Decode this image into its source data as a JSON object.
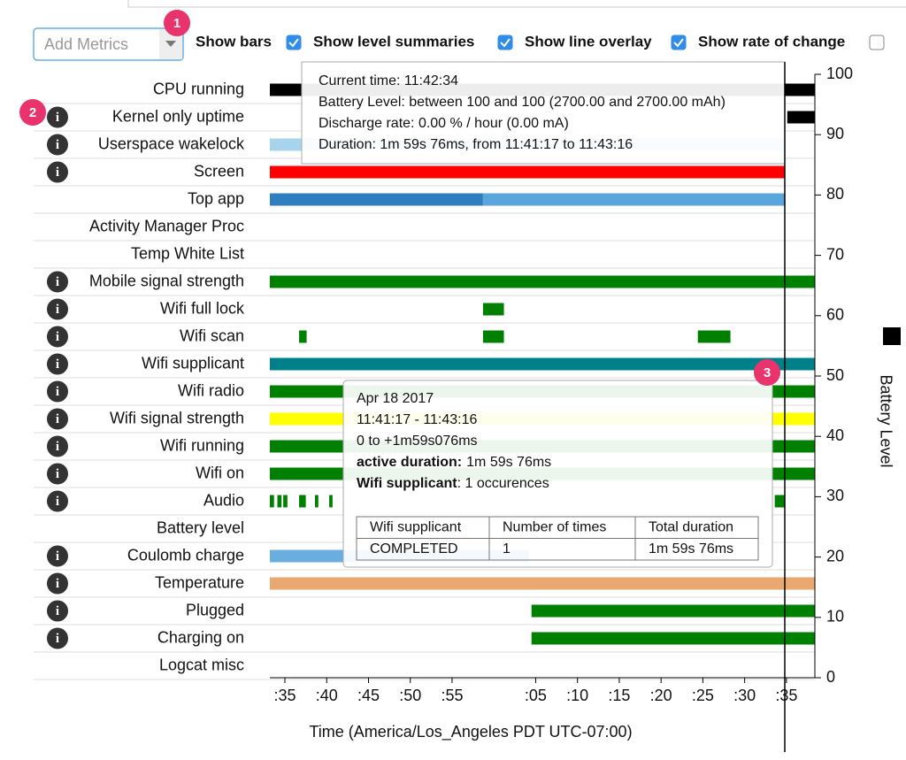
{
  "controls": {
    "add_metrics": "Add Metrics",
    "checkboxes": [
      {
        "label": "Show bars",
        "checked": true
      },
      {
        "label": "Show level summaries",
        "checked": true
      },
      {
        "label": "Show line overlay",
        "checked": true
      },
      {
        "label": "Show rate of change",
        "checked": false
      }
    ]
  },
  "badges": [
    "1",
    "2",
    "3"
  ],
  "timeline": {
    "xlim": [
      33.2,
      98.4
    ],
    "xticks": [
      {
        "value": 35,
        "label": ":35"
      },
      {
        "value": 40,
        "label": ":40"
      },
      {
        "value": 45,
        "label": ":45"
      },
      {
        "value": 50,
        "label": ":50"
      },
      {
        "value": 55,
        "label": ":55"
      },
      {
        "value": 65,
        "label": ":05"
      },
      {
        "value": 70,
        "label": ":10"
      },
      {
        "value": 75,
        "label": ":15"
      },
      {
        "value": 80,
        "label": ":20"
      },
      {
        "value": 85,
        "label": ":25"
      },
      {
        "value": 90,
        "label": ":30"
      },
      {
        "value": 95,
        "label": ":35"
      }
    ],
    "xlabel": "Time (America/Los_Angeles PDT UTC-07:00)",
    "ylabel": "Battery Level",
    "ylim": [
      0,
      100
    ],
    "yticks": [
      0,
      10,
      20,
      30,
      40,
      50,
      60,
      70,
      80,
      90,
      100
    ],
    "rows": [
      {
        "label": "CPU running",
        "info": false,
        "bars": [
          {
            "start": 33.2,
            "end": 98.4,
            "color": "#000000"
          }
        ]
      },
      {
        "label": "Kernel only uptime",
        "info": true,
        "bars": [
          {
            "start": 95.1,
            "end": 98.4,
            "color": "#000000"
          }
        ]
      },
      {
        "label": "Userspace wakelock",
        "info": true,
        "bars": [
          {
            "start": 33.2,
            "end": 94.8,
            "color": "#a6d4ec"
          }
        ]
      },
      {
        "label": "Screen",
        "info": true,
        "bars": [
          {
            "start": 33.2,
            "end": 94.8,
            "color": "#ff0000"
          }
        ]
      },
      {
        "label": "Top app",
        "info": false,
        "bars": [
          {
            "start": 33.2,
            "end": 58.7,
            "color": "#2e7ec0"
          },
          {
            "start": 58.7,
            "end": 94.8,
            "color": "#5aa6dc"
          }
        ]
      },
      {
        "label": "Activity Manager Proc",
        "info": false,
        "bars": []
      },
      {
        "label": "Temp White List",
        "info": false,
        "bars": []
      },
      {
        "label": "Mobile signal strength",
        "info": true,
        "bars": [
          {
            "start": 33.2,
            "end": 98.4,
            "color": "#008000"
          }
        ]
      },
      {
        "label": "Wifi full lock",
        "info": true,
        "bars": [
          {
            "start": 58.7,
            "end": 61.2,
            "color": "#008000"
          }
        ]
      },
      {
        "label": "Wifi scan",
        "info": true,
        "bars": [
          {
            "start": 36.7,
            "end": 37.6,
            "color": "#008000"
          },
          {
            "start": 58.7,
            "end": 61.2,
            "color": "#008000"
          },
          {
            "start": 84.4,
            "end": 88.3,
            "color": "#008000"
          }
        ]
      },
      {
        "label": "Wifi supplicant",
        "info": true,
        "bars": [
          {
            "start": 33.2,
            "end": 98.4,
            "color": "#00808a"
          }
        ]
      },
      {
        "label": "Wifi radio",
        "info": true,
        "bars": [
          {
            "start": 33.2,
            "end": 98.4,
            "color": "#008000"
          }
        ]
      },
      {
        "label": "Wifi signal strength",
        "info": true,
        "bars": [
          {
            "start": 33.2,
            "end": 98.4,
            "color": "#ffff00"
          }
        ]
      },
      {
        "label": "Wifi running",
        "info": true,
        "bars": [
          {
            "start": 33.2,
            "end": 98.4,
            "color": "#008000"
          }
        ]
      },
      {
        "label": "Wifi on",
        "info": true,
        "bars": [
          {
            "start": 33.2,
            "end": 98.4,
            "color": "#008000"
          }
        ]
      },
      {
        "label": "Audio",
        "info": true,
        "bars": [
          {
            "start": 33.2,
            "end": 33.7,
            "color": "#008000"
          },
          {
            "start": 34.1,
            "end": 34.6,
            "color": "#008000"
          },
          {
            "start": 34.8,
            "end": 35.3,
            "color": "#008000"
          },
          {
            "start": 36.7,
            "end": 37.5,
            "color": "#008000"
          },
          {
            "start": 38.6,
            "end": 39.0,
            "color": "#008000"
          },
          {
            "start": 40.3,
            "end": 40.7,
            "color": "#008000"
          },
          {
            "start": 93.6,
            "end": 94.8,
            "color": "#008000"
          }
        ]
      },
      {
        "label": "Battery level",
        "info": false,
        "bars": []
      },
      {
        "label": "Coulomb charge",
        "info": true,
        "bars": [
          {
            "start": 33.2,
            "end": 64.2,
            "color": "#6aaee0"
          }
        ]
      },
      {
        "label": "Temperature",
        "info": true,
        "bars": [
          {
            "start": 33.2,
            "end": 98.4,
            "color": "#e8a870"
          }
        ]
      },
      {
        "label": "Plugged",
        "info": true,
        "bars": [
          {
            "start": 64.5,
            "end": 98.4,
            "color": "#008000"
          }
        ]
      },
      {
        "label": "Charging on",
        "info": true,
        "bars": [
          {
            "start": 64.5,
            "end": 98.4,
            "color": "#008000"
          }
        ]
      },
      {
        "label": "Logcat misc",
        "info": false,
        "bars": []
      }
    ]
  },
  "tooltip1": {
    "lines": [
      "Current time: 11:42:34",
      "Battery Level: between 100 and 100 (2700.00 and 2700.00 mAh)",
      "Discharge rate: 0.00 % / hour (0.00 mA)",
      "Duration: 1m 59s 76ms, from 11:41:17 to 11:43:16"
    ]
  },
  "tooltip2": {
    "lines": [
      "Apr 18 2017",
      "11:41:17 - 11:43:16",
      "0 to +1m59s076ms"
    ],
    "active_label": "active duration:",
    "active_value": "1m 59s 76ms",
    "metric_label": "Wifi supplicant",
    "metric_value": ": 1 occurences",
    "table": {
      "header": [
        "Wifi supplicant",
        "Number of times",
        "Total duration"
      ],
      "rows": [
        [
          "COMPLETED",
          "1",
          "1m 59s 76ms"
        ]
      ]
    }
  }
}
